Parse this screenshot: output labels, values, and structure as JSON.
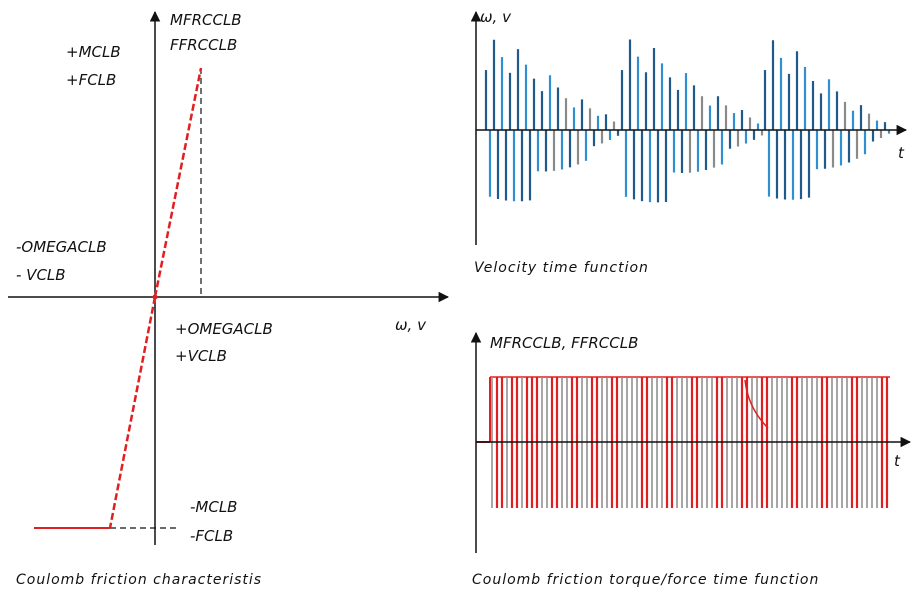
{
  "left_panel": {
    "label_mfrcclb": "MFRCCLB",
    "label_ffrcclb": "FFRCCLB",
    "label_plus_mclb": "+MCLB",
    "label_plus_fclb": "+FCLB",
    "label_minus_omegaclb": "-OMEGACLB",
    "label_minus_vclb": "- VCLB",
    "label_plus_omegaclb": "+OMEGACLB",
    "label_plus_vclb": "+VCLB",
    "label_minus_mclb": "-MCLB",
    "label_minus_fclb": "-FCLB",
    "axis_x_label": "ω, v",
    "caption": "Coulomb  friction  characteristis"
  },
  "top_right_panel": {
    "axis_y_label": "ω, v",
    "axis_x_label": "t",
    "caption": "Velocity  time  function"
  },
  "bottom_right_panel": {
    "axis_y_label": "MFRCCLB,   FFRCCLB",
    "axis_x_label": "t",
    "caption": "Coulomb  friction  torque/force  time  function"
  },
  "colors": {
    "axis": "#111111",
    "characteristic": "#e02020",
    "velocity_dark": "#1f5a8a",
    "velocity_light": "#2f8fd0",
    "velocity_gray": "#8a8a8a",
    "torque_red": "#e02020",
    "torque_gray": "#8a8a8a"
  }
}
